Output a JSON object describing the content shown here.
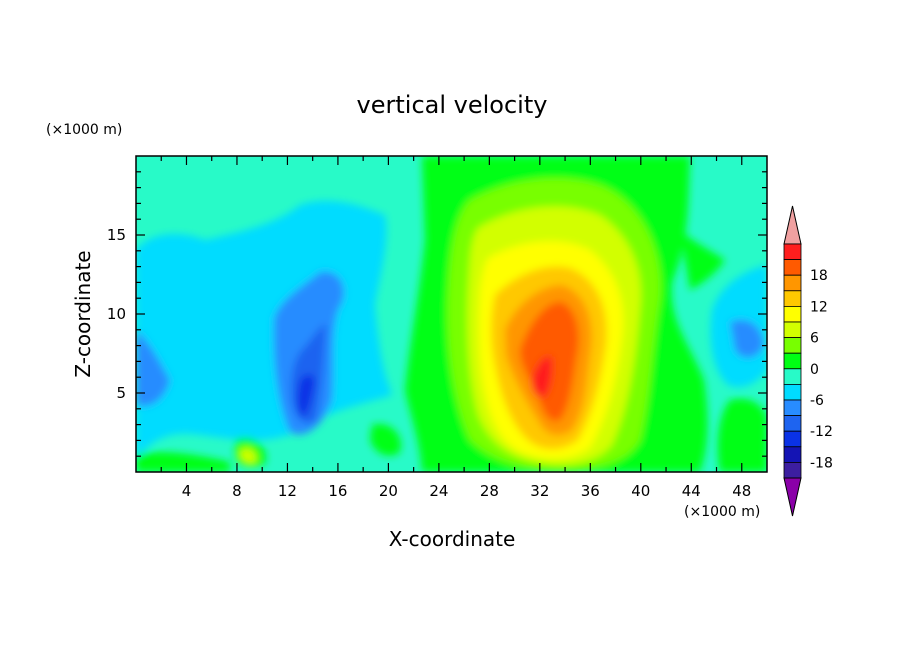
{
  "chart_data": {
    "type": "heatmap",
    "title": "vertical velocity",
    "xlabel": "X-coordinate",
    "ylabel": "Z-coordinate",
    "x_unit": "(×1000 m)",
    "y_unit": "(×1000 m)",
    "xlim": [
      0,
      50
    ],
    "ylim": [
      0,
      20
    ],
    "x_ticks": [
      "4",
      "8",
      "12",
      "16",
      "20",
      "24",
      "28",
      "32",
      "36",
      "40",
      "44",
      "48"
    ],
    "y_ticks": [
      "5",
      "10",
      "15"
    ],
    "colorbar": {
      "labels": [
        "18",
        "12",
        "6",
        "0",
        "-6",
        "-12",
        "-18"
      ],
      "levels": [
        -21,
        -18,
        -15,
        -12,
        -9,
        -6,
        -3,
        0,
        3,
        6,
        9,
        12,
        15,
        18,
        21
      ],
      "colors": [
        "#8a00a8",
        "#3c1ea0",
        "#1414b4",
        "#0a32e6",
        "#1e64f0",
        "#288cff",
        "#00dcff",
        "#28fac8",
        "#00ff14",
        "#78ff00",
        "#d2ff00",
        "#ffff00",
        "#ffc800",
        "#ff9600",
        "#ff5a00",
        "#ff1e1e",
        "#f0a0a0"
      ],
      "extend": "both"
    },
    "features": [
      {
        "x": 33,
        "z": 7,
        "value": 18
      },
      {
        "x": 34.5,
        "z": 4.5,
        "value": 12
      },
      {
        "x": 14,
        "z": 6,
        "value": -12
      },
      {
        "x": 13.5,
        "z": 3,
        "value": -15
      },
      {
        "x": 3.5,
        "z": 6,
        "value": -9
      },
      {
        "x": 48.5,
        "z": 8.5,
        "value": -9
      },
      {
        "x": 10,
        "z": 1,
        "value": 6
      }
    ]
  }
}
